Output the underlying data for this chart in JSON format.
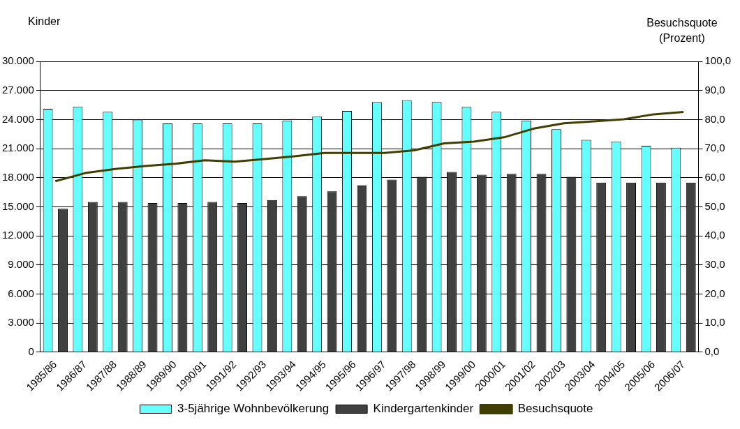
{
  "chart_data": {
    "type": "bar",
    "ylabel": "Kinder",
    "y2label": "Besuchsquote (Prozent)",
    "categories": [
      "1985/86",
      "1986/87",
      "1987/88",
      "1988/89",
      "1989/90",
      "1990/91",
      "1991/92",
      "1992/93",
      "1993/94",
      "1994/95",
      "1995/96",
      "1996/97",
      "1997/98",
      "1998/99",
      "1999/00",
      "2000/01",
      "2001/02",
      "2002/03",
      "2003/04",
      "2004/05",
      "2005/06",
      "2006/07"
    ],
    "series": [
      {
        "name": "3-5jährige Wohnbevölkerung",
        "color": "#66ffff",
        "values": [
          25100,
          25300,
          24800,
          24000,
          23600,
          23600,
          23600,
          23600,
          23900,
          24300,
          24900,
          25800,
          26000,
          25800,
          25300,
          24800,
          23900,
          23000,
          21900,
          21700,
          21300,
          21100
        ]
      },
      {
        "name": "Kindergartenkinder",
        "color": "#404040",
        "values": [
          14800,
          15500,
          15500,
          15400,
          15400,
          15500,
          15400,
          15700,
          16100,
          16600,
          17200,
          17800,
          18100,
          18600,
          18300,
          18400,
          18400,
          18100,
          17500,
          17500,
          17500,
          17500
        ]
      },
      {
        "name": "Besuchsquote",
        "type": "line",
        "axis": "y2",
        "color": "#403e00",
        "values": [
          58.8,
          61.6,
          63.0,
          64.0,
          64.8,
          66.0,
          65.5,
          66.4,
          67.4,
          68.5,
          68.5,
          68.5,
          69.4,
          71.8,
          72.4,
          73.9,
          76.9,
          78.7,
          79.4,
          80.1,
          81.8,
          82.6
        ]
      }
    ],
    "ylim": [
      0,
      30000
    ],
    "yticks": [
      {
        "value": 0,
        "label": "0"
      },
      {
        "value": 3000,
        "label": "3.000"
      },
      {
        "value": 6000,
        "label": "6.000"
      },
      {
        "value": 9000,
        "label": "9.000"
      },
      {
        "value": 12000,
        "label": "12.000"
      },
      {
        "value": 15000,
        "label": "15.000"
      },
      {
        "value": 18000,
        "label": "18.000"
      },
      {
        "value": 21000,
        "label": "21.000"
      },
      {
        "value": 24000,
        "label": "24.000"
      },
      {
        "value": 27000,
        "label": "27.000"
      },
      {
        "value": 30000,
        "label": "30.000"
      }
    ],
    "y2lim": [
      0,
      100
    ],
    "y2ticks": [
      {
        "value": 0,
        "label": "0,0"
      },
      {
        "value": 10,
        "label": "10,0"
      },
      {
        "value": 20,
        "label": "20,0"
      },
      {
        "value": 30,
        "label": "30,0"
      },
      {
        "value": 40,
        "label": "40,0"
      },
      {
        "value": 50,
        "label": "50,0"
      },
      {
        "value": 60,
        "label": "60,0"
      },
      {
        "value": 70,
        "label": "70,0"
      },
      {
        "value": 80,
        "label": "80,0"
      },
      {
        "value": 90,
        "label": "90,0"
      },
      {
        "value": 100,
        "label": "100,0"
      }
    ],
    "grid": "y",
    "legend": "bottom",
    "marker": "none",
    "line_style": "solid"
  }
}
